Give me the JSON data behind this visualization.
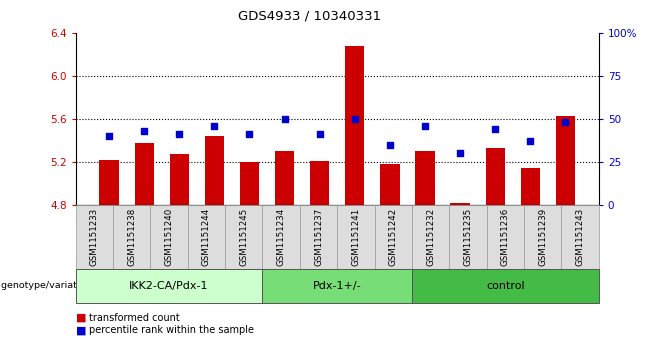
{
  "title": "GDS4933 / 10340331",
  "samples": [
    "GSM1151233",
    "GSM1151238",
    "GSM1151240",
    "GSM1151244",
    "GSM1151245",
    "GSM1151234",
    "GSM1151237",
    "GSM1151241",
    "GSM1151242",
    "GSM1151232",
    "GSM1151235",
    "GSM1151236",
    "GSM1151239",
    "GSM1151243"
  ],
  "red_values": [
    5.22,
    5.38,
    5.27,
    5.44,
    5.2,
    5.3,
    5.21,
    6.28,
    5.18,
    5.3,
    4.82,
    5.33,
    5.14,
    5.63
  ],
  "blue_values": [
    40,
    43,
    41,
    46,
    41,
    50,
    41,
    50,
    35,
    46,
    30,
    44,
    37,
    48
  ],
  "ylim": [
    4.8,
    6.4
  ],
  "y2lim": [
    0,
    100
  ],
  "yticks": [
    4.8,
    5.2,
    5.6,
    6.0,
    6.4
  ],
  "y2ticks": [
    0,
    25,
    50,
    75,
    100
  ],
  "y2ticklabels": [
    "0",
    "25",
    "50",
    "75",
    "100%"
  ],
  "dotted_lines": [
    5.2,
    5.6,
    6.0
  ],
  "groups": [
    {
      "label": "IKK2-CA/Pdx-1",
      "start": 0,
      "end": 5,
      "color": "#ccffcc"
    },
    {
      "label": "Pdx-1+/-",
      "start": 5,
      "end": 9,
      "color": "#77dd77"
    },
    {
      "label": "control",
      "start": 9,
      "end": 14,
      "color": "#44bb44"
    }
  ],
  "bar_color": "#cc0000",
  "dot_color": "#0000cc",
  "bar_bottom": 4.8,
  "genotype_label": "genotype/variation"
}
